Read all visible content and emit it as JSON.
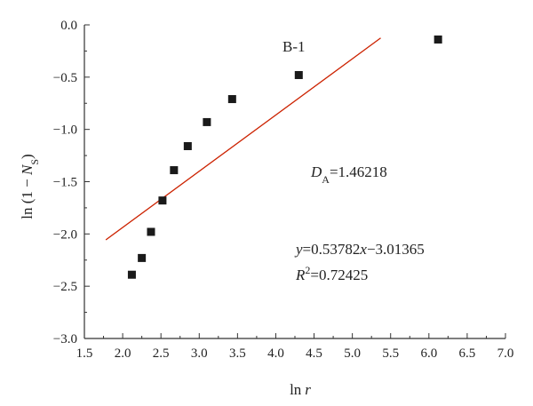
{
  "chart_data": {
    "type": "scatter",
    "title": "",
    "xlabel": {
      "main": "ln",
      "var": "r"
    },
    "ylabel": {
      "pre": "ln (1 − ",
      "var": "N",
      "sub": "S",
      "post": ")"
    },
    "xlim": [
      1.5,
      7.0
    ],
    "ylim": [
      -3.0,
      0.0
    ],
    "xticks": [
      1.5,
      2.0,
      2.5,
      3.0,
      3.5,
      4.0,
      4.5,
      5.0,
      5.5,
      6.0,
      6.5,
      7.0
    ],
    "yticks": [
      0.0,
      -0.5,
      -1.0,
      -1.5,
      -2.0,
      -2.5,
      -3.0
    ],
    "xtick_labels": [
      "1.5",
      "2.0",
      "2.5",
      "3.0",
      "3.5",
      "4.0",
      "4.5",
      "5.0",
      "5.5",
      "6.0",
      "6.5",
      "7.0"
    ],
    "ytick_labels": [
      "0.0",
      "−0.5",
      "−1.0",
      "−1.5",
      "−2.0",
      "−2.5",
      "−3.0"
    ],
    "series": [
      {
        "x": [
          2.12,
          2.25,
          2.37,
          2.52,
          2.67,
          2.85,
          3.1,
          3.43,
          4.3,
          6.12
        ],
        "y": [
          -2.39,
          -2.23,
          -1.98,
          -1.68,
          -1.39,
          -1.16,
          -0.93,
          -0.71,
          -0.48,
          -0.14
        ],
        "color": "#1a1a1a"
      }
    ],
    "fit_line": {
      "slope": 0.53782,
      "intercept": -3.01365,
      "x_range": [
        1.78,
        5.37
      ],
      "color": "#cc2200"
    },
    "annotations": {
      "sample_label": "B-1",
      "da": {
        "var": "D",
        "sub": "A",
        "value": "=1.46218"
      },
      "equation": {
        "y": "y",
        "mid": "=0.53782",
        "x": "x",
        "end": "−3.01365"
      },
      "r2": {
        "var": "R",
        "sup": "2",
        "value": "=0.72425"
      }
    },
    "grid": false,
    "legend": "none"
  }
}
